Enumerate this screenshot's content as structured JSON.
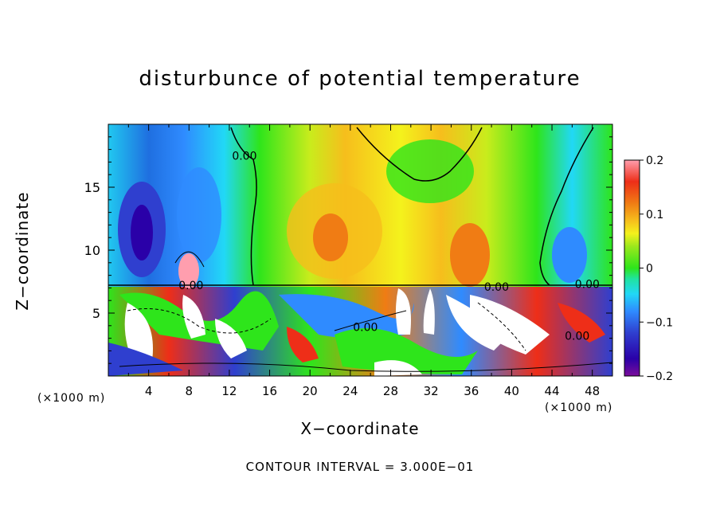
{
  "chart_data": {
    "type": "heatmap",
    "title": "disturbunce of potential temperature",
    "xlabel": "X−coordinate",
    "ylabel": "Z−coordinate",
    "x_unit": "(×1000 m)",
    "y_unit": "(×1000 m)",
    "xlim": [
      0,
      50
    ],
    "ylim": [
      0,
      20
    ],
    "x_ticks": [
      4,
      8,
      12,
      16,
      20,
      24,
      28,
      32,
      36,
      40,
      44,
      48
    ],
    "y_ticks": [
      5,
      10,
      15
    ],
    "colorbar": {
      "range": [
        -0.2,
        0.2
      ],
      "tick_values": [
        0.2,
        0.1,
        0,
        -0.1,
        -0.2
      ],
      "tick_labels": [
        "0.2",
        "0.1",
        "0",
        "−0.1",
        "−0.2"
      ],
      "colors": [
        "#7b0d9b",
        "#2a00a8",
        "#2f3fcf",
        "#2f8bff",
        "#21d8f6",
        "#20e3a0",
        "#2ee51b",
        "#9be81c",
        "#f4f21c",
        "#f6be1c",
        "#f07c14",
        "#ee2e18",
        "#ff9eae"
      ]
    },
    "contour_labels": [
      {
        "text": "0.00",
        "x": 13.5,
        "z": 17.5
      },
      {
        "text": "0.00",
        "x": 8.2,
        "z": 7.2
      },
      {
        "text": "0.00",
        "x": 38.5,
        "z": 7.1
      },
      {
        "text": "0.00",
        "x": 47.5,
        "z": 7.3
      },
      {
        "text": "0.00",
        "x": 25.5,
        "z": 3.9
      },
      {
        "text": "0.00",
        "x": 46.5,
        "z": 3.2
      }
    ],
    "footer": "CONTOUR INTERVAL = 3.000E−01"
  }
}
